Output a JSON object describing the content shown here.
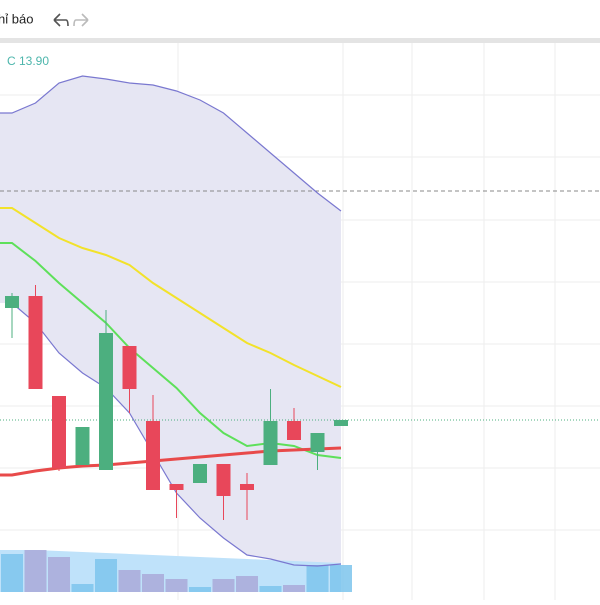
{
  "toolbar": {
    "label": "hỉ báo"
  },
  "chart_data": {
    "type": "candlestick",
    "legend": {
      "close_label": "C",
      "last_close": {
        "value": 13.9,
        "label": "13.90"
      }
    },
    "open": [
      15.02,
      15.14,
      14.14,
      13.45,
      13.4,
      14.64,
      13.89,
      13.26,
      13.27,
      13.46,
      13.26,
      13.45,
      13.89,
      13.58,
      13.84
    ],
    "high": [
      15.17,
      15.25,
      14.14,
      13.83,
      15.0,
      14.64,
      14.15,
      13.26,
      13.46,
      13.46,
      13.37,
      14.21,
      14.02,
      13.77,
      13.9
    ],
    "low": [
      14.72,
      14.21,
      13.39,
      13.45,
      13.4,
      13.97,
      13.2,
      12.92,
      13.27,
      12.9,
      12.9,
      13.45,
      13.7,
      13.4,
      13.84
    ],
    "close": [
      15.14,
      14.21,
      13.42,
      13.83,
      14.77,
      14.21,
      13.2,
      13.2,
      13.46,
      13.14,
      13.2,
      13.89,
      13.7,
      13.77,
      13.9
    ],
    "up_color": "#4caf7f",
    "down_color": "#e8475a",
    "ylim": [
      12.17,
      17.67
    ],
    "bands": {
      "upper": [
        16.97,
        17.07,
        17.27,
        17.34,
        17.31,
        17.27,
        17.25,
        17.19,
        17.1,
        16.97,
        16.77,
        16.57,
        16.37,
        16.17,
        15.99
      ],
      "lower": [
        15.07,
        14.87,
        14.57,
        14.37,
        14.22,
        13.97,
        13.57,
        13.17,
        12.92,
        12.72,
        12.55,
        12.51,
        12.45,
        12.44,
        12.46
      ],
      "color": "#7a78d0",
      "fill": "#e6e6f3"
    },
    "lines": [
      {
        "values": [
          16.02,
          15.87,
          15.72,
          15.62,
          15.55,
          15.45,
          15.27,
          15.12,
          14.97,
          14.82,
          14.67,
          14.57,
          14.45,
          14.34,
          14.23
        ],
        "color": "#f2e22a"
      },
      {
        "values": [
          15.67,
          15.49,
          15.27,
          15.07,
          14.87,
          14.62,
          14.42,
          14.22,
          13.97,
          13.77,
          13.64,
          13.67,
          13.64,
          13.55,
          13.52
        ],
        "color": "#5ee05a"
      },
      {
        "values": [
          13.35,
          13.39,
          13.42,
          13.44,
          13.45,
          13.47,
          13.49,
          13.51,
          13.53,
          13.55,
          13.57,
          13.59,
          13.6,
          13.61,
          13.62
        ],
        "color": "#e84a4a"
      }
    ],
    "level": 16.19,
    "volumes": [
      38,
      42,
      35,
      8,
      33,
      22,
      18,
      13,
      5,
      13,
      16,
      6,
      7,
      27,
      27
    ],
    "volume_ma": [
      42,
      42,
      41,
      40,
      39,
      38,
      37,
      36,
      35,
      34,
      33,
      32,
      31,
      30,
      29
    ],
    "vlim": [
      0,
      50
    ],
    "volume_up_color": "#7cc4ec",
    "volume_down_color": "#a9a9d8",
    "volume_ma_color": "#bfe2fa"
  }
}
